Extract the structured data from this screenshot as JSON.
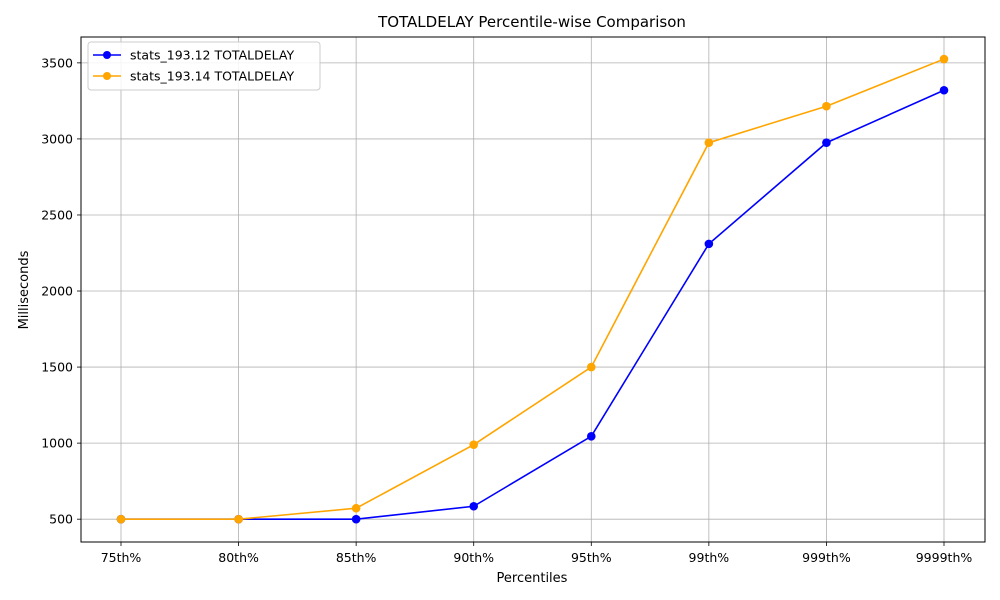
{
  "chart_data": {
    "type": "line",
    "title": "TOTALDELAY Percentile-wise Comparison",
    "xlabel": "Percentiles",
    "ylabel": "Milliseconds",
    "categories": [
      "75th%",
      "80th%",
      "85th%",
      "90th%",
      "95th%",
      "99th%",
      "999th%",
      "9999th%"
    ],
    "ylim": [
      350,
      3670
    ],
    "yticks": [
      500,
      1000,
      1500,
      2000,
      2500,
      3000,
      3500
    ],
    "grid": true,
    "legend_position": "top-left",
    "series": [
      {
        "name": "stats_193.12 TOTALDELAY",
        "color": "#0000ff",
        "values": [
          500,
          500,
          500,
          585,
          1045,
          2310,
          2975,
          3320
        ]
      },
      {
        "name": "stats_193.14 TOTALDELAY",
        "color": "#ffa500",
        "values": [
          500,
          500,
          572,
          990,
          1500,
          2975,
          3215,
          3525
        ]
      }
    ]
  }
}
